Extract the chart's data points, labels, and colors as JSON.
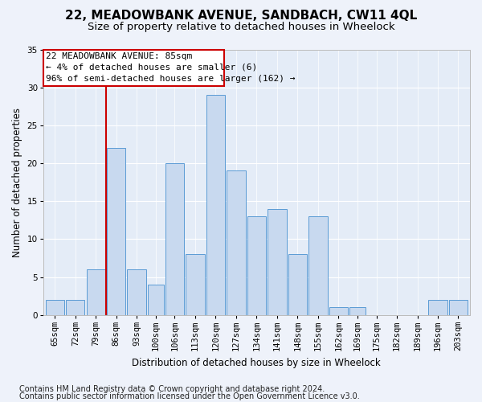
{
  "title": "22, MEADOWBANK AVENUE, SANDBACH, CW11 4QL",
  "subtitle": "Size of property relative to detached houses in Wheelock",
  "xlabel": "Distribution of detached houses by size in Wheelock",
  "ylabel": "Number of detached properties",
  "footnote1": "Contains HM Land Registry data © Crown copyright and database right 2024.",
  "footnote2": "Contains public sector information licensed under the Open Government Licence v3.0.",
  "annotation_line1": "22 MEADOWBANK AVENUE: 85sqm",
  "annotation_line2": "← 4% of detached houses are smaller (6)",
  "annotation_line3": "96% of semi-detached houses are larger (162) →",
  "bar_color": "#c8d9ef",
  "bar_edge_color": "#5b9bd5",
  "marker_line_color": "#cc0000",
  "categories": [
    "65sqm",
    "72sqm",
    "79sqm",
    "86sqm",
    "93sqm",
    "100sqm",
    "106sqm",
    "113sqm",
    "120sqm",
    "127sqm",
    "134sqm",
    "141sqm",
    "148sqm",
    "155sqm",
    "162sqm",
    "169sqm",
    "175sqm",
    "182sqm",
    "189sqm",
    "196sqm",
    "203sqm"
  ],
  "bin_edges": [
    65,
    72,
    79,
    86,
    93,
    100,
    106,
    113,
    120,
    127,
    134,
    141,
    148,
    155,
    162,
    169,
    175,
    182,
    189,
    196,
    203,
    210
  ],
  "values": [
    2,
    2,
    6,
    22,
    6,
    4,
    20,
    8,
    29,
    19,
    13,
    14,
    8,
    13,
    1,
    1,
    0,
    0,
    0,
    2,
    2
  ],
  "ylim": [
    0,
    35
  ],
  "yticks": [
    0,
    5,
    10,
    15,
    20,
    25,
    30,
    35
  ],
  "bg_color": "#eef2fa",
  "plot_bg_color": "#e4ecf7",
  "grid_color": "#ffffff",
  "title_fontsize": 11,
  "subtitle_fontsize": 9.5,
  "axis_label_fontsize": 8.5,
  "tick_fontsize": 7.5,
  "annotation_fontsize": 8,
  "footnote_fontsize": 7
}
